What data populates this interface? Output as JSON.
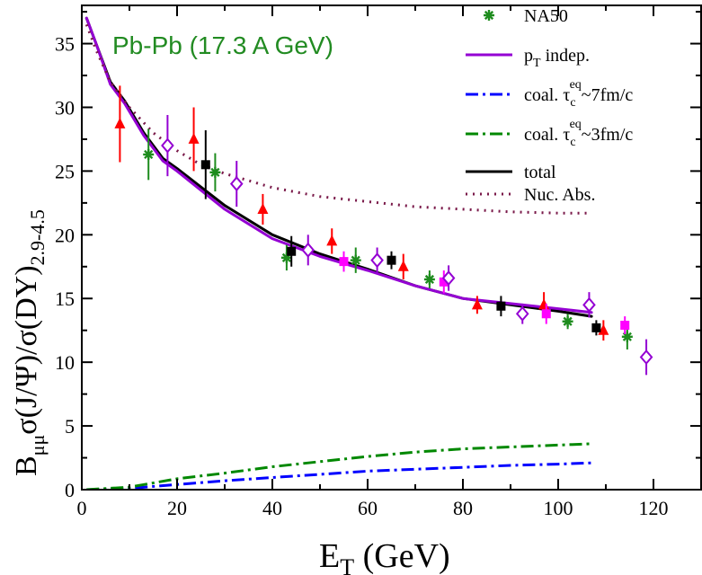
{
  "chart_data": {
    "type": "line",
    "system_label": "Pb-Pb (17.3 A GeV)",
    "colors": {
      "na50_green": "#1e8c1e",
      "red": "#ff0000",
      "black": "#000000",
      "magenta": "#ff00ff",
      "violet": "#9400d3",
      "blue": "#0000ff",
      "green": "#008800",
      "brown": "#7a1a4a",
      "label": "#228b22"
    },
    "xlim": [
      0,
      130
    ],
    "ylim": [
      0,
      38
    ],
    "xticks": [
      0,
      20,
      40,
      60,
      80,
      100,
      120
    ],
    "yticks": [
      0,
      5,
      10,
      15,
      20,
      25,
      30,
      35
    ],
    "xlabel": {
      "main": "E",
      "sub": "T",
      "rest": " (GeV)"
    },
    "ylabel": {
      "b": "B",
      "bsub": "μμ",
      "main": "σ(J/Ψ)/σ(DY)",
      "sub": "2.9-4.5"
    },
    "legend": [
      {
        "key": "na50",
        "text": "NA50"
      },
      {
        "key": "pt",
        "text": "p",
        "sub": "T",
        "rest": " indep."
      },
      {
        "key": "coal7",
        "text": "coal. τ",
        "sub": "c",
        "sup": "eq",
        "rest": "~7fm/c"
      },
      {
        "key": "coal3",
        "text": "coal. τ",
        "sub": "c",
        "sup": "eq",
        "rest": "~3fm/c"
      },
      {
        "key": "total",
        "text": "total"
      },
      {
        "key": "nuc",
        "text": "Nuc. Abs."
      }
    ],
    "series": [
      {
        "key": "total",
        "color": "#000000",
        "dash": "",
        "width": 3,
        "x": [
          1,
          3,
          6,
          9,
          13,
          17,
          20,
          30,
          40,
          50,
          60,
          70,
          80,
          90,
          100,
          107
        ],
        "y": [
          37,
          35,
          32,
          30.5,
          28,
          26,
          25.2,
          22.3,
          20.0,
          18.5,
          17.3,
          16.0,
          15.0,
          14.5,
          14.0,
          13.6
        ]
      },
      {
        "key": "pt",
        "color": "#9400d3",
        "dash": "",
        "width": 3,
        "x": [
          1,
          3,
          6,
          9,
          13,
          17,
          20,
          30,
          40,
          50,
          60,
          70,
          80,
          90,
          100,
          107
        ],
        "y": [
          37,
          35,
          31.8,
          30.3,
          27.8,
          25.8,
          25.0,
          22.0,
          19.7,
          18.3,
          17.2,
          16.0,
          15.0,
          14.6,
          14.2,
          13.9
        ]
      },
      {
        "key": "nuc",
        "color": "#7a1a4a",
        "dash": "2,6",
        "width": 3,
        "x": [
          1,
          3,
          6,
          10,
          15,
          20,
          25,
          30,
          40,
          50,
          60,
          70,
          80,
          90,
          100,
          107
        ],
        "y": [
          36.5,
          34.5,
          32.0,
          30.0,
          28.0,
          26.6,
          25.5,
          24.8,
          23.7,
          23.0,
          22.6,
          22.2,
          22.0,
          21.8,
          21.7,
          21.7
        ]
      },
      {
        "key": "coal7",
        "color": "#0000ff",
        "dash": "14,5,3,5",
        "width": 3,
        "x": [
          1,
          10,
          20,
          30,
          40,
          50,
          60,
          70,
          80,
          90,
          100,
          107
        ],
        "y": [
          0,
          0.1,
          0.4,
          0.7,
          0.95,
          1.2,
          1.45,
          1.6,
          1.75,
          1.9,
          2.0,
          2.1
        ]
      },
      {
        "key": "coal3",
        "color": "#008800",
        "dash": "14,5,3,5",
        "width": 3,
        "x": [
          1,
          10,
          20,
          30,
          40,
          50,
          60,
          70,
          80,
          90,
          100,
          107
        ],
        "y": [
          0,
          0.2,
          0.85,
          1.3,
          1.8,
          2.2,
          2.6,
          2.95,
          3.2,
          3.35,
          3.5,
          3.6
        ]
      }
    ],
    "points": [
      {
        "group": "green_star",
        "marker": "star",
        "color": "#1e8c1e",
        "x": [
          14,
          28,
          43,
          57.5,
          73,
          102,
          114.5
        ],
        "y": [
          26.3,
          24.9,
          18.2,
          18.0,
          16.5,
          13.2,
          12.0
        ],
        "err": [
          2.0,
          1.5,
          1.0,
          1.0,
          0.7,
          0.6,
          1.0
        ]
      },
      {
        "group": "red_triangle",
        "marker": "triangle",
        "color": "#ff0000",
        "x": [
          8,
          23.5,
          38,
          52.5,
          67.5,
          83,
          97,
          109.5
        ],
        "y": [
          28.7,
          27.5,
          22.0,
          19.5,
          17.5,
          14.5,
          14.5,
          12.5
        ],
        "err": [
          3.0,
          2.5,
          1.2,
          1.0,
          1.0,
          0.7,
          1.0,
          0.8
        ]
      },
      {
        "group": "black_square",
        "marker": "square",
        "color": "#000000",
        "x": [
          26,
          44,
          65,
          88,
          108
        ],
        "y": [
          25.5,
          18.7,
          18.0,
          14.4,
          12.7
        ],
        "err": [
          2.7,
          1.2,
          0.7,
          0.8,
          0.6
        ]
      },
      {
        "group": "magenta_square",
        "marker": "square",
        "color": "#ff00ff",
        "x": [
          55,
          76,
          97.5,
          114
        ],
        "y": [
          17.9,
          16.3,
          13.8,
          12.9
        ],
        "err": [
          0.8,
          0.9,
          0.8,
          0.7
        ]
      },
      {
        "group": "violet_diamond",
        "marker": "diamond",
        "color": "#9400d3",
        "x": [
          18,
          32.5,
          47.5,
          62,
          77,
          92.5,
          106.5,
          118.5
        ],
        "y": [
          27.0,
          24.0,
          18.8,
          18.0,
          16.6,
          13.8,
          14.5,
          10.4
        ],
        "err": [
          2.4,
          1.8,
          1.2,
          1.0,
          1.0,
          0.8,
          1.0,
          1.4
        ]
      }
    ]
  }
}
